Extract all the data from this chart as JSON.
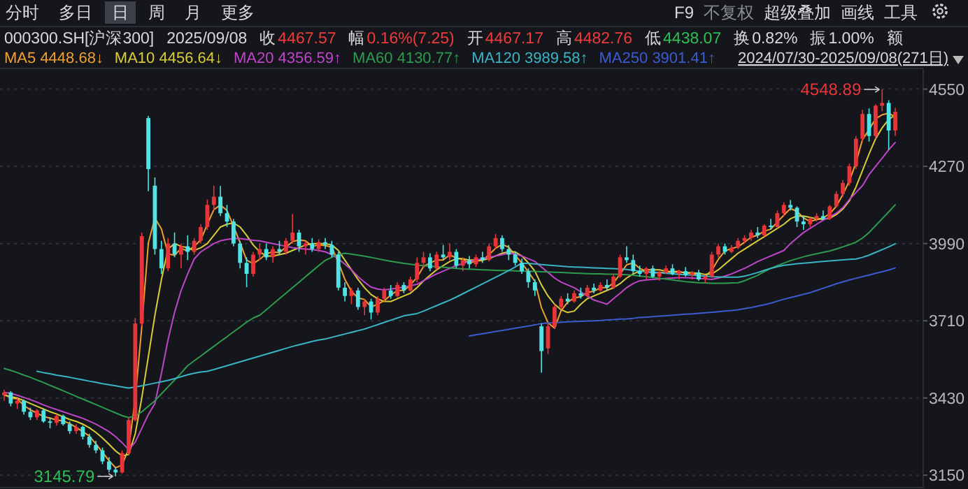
{
  "chart_data": {
    "type": "candlestick",
    "categories": [
      null,
      null,
      null,
      null,
      null,
      null,
      null,
      null,
      null,
      null,
      null,
      null,
      null,
      null,
      null,
      null,
      null,
      null,
      null,
      null,
      null,
      null,
      null,
      null,
      null,
      null,
      null,
      null,
      null,
      null,
      null,
      null,
      null,
      null,
      null,
      null,
      null,
      null,
      null,
      null,
      null,
      null,
      null,
      null,
      null,
      null,
      null,
      null,
      null,
      null,
      null,
      null,
      null,
      null,
      null,
      null,
      null,
      null,
      null,
      null,
      null,
      null,
      null,
      null,
      null,
      null,
      null,
      null,
      null,
      null,
      null,
      null,
      null,
      null,
      null,
      null,
      null,
      null,
      null,
      null,
      null,
      null,
      null,
      null,
      null,
      null,
      null,
      null,
      null,
      null,
      null,
      null,
      null,
      null,
      null,
      null,
      null,
      null,
      null,
      null,
      null,
      null,
      null,
      null,
      null,
      null,
      null,
      null,
      null,
      null,
      null,
      null,
      null,
      null,
      null,
      null,
      null,
      null,
      null,
      null,
      null,
      null,
      null,
      null,
      null,
      null,
      null,
      null,
      null,
      null,
      null,
      null,
      null,
      null,
      null,
      null,
      null
    ],
    "ohlc": [
      [
        3440,
        3460,
        3420,
        3450
      ],
      [
        3450,
        3455,
        3400,
        3410
      ],
      [
        3410,
        3430,
        3390,
        3420
      ],
      [
        3420,
        3425,
        3370,
        3380
      ],
      [
        3380,
        3395,
        3350,
        3360
      ],
      [
        3360,
        3390,
        3350,
        3385
      ],
      [
        3385,
        3390,
        3340,
        3345
      ],
      [
        3345,
        3360,
        3320,
        3340
      ],
      [
        3340,
        3370,
        3330,
        3365
      ],
      [
        3365,
        3370,
        3330,
        3335
      ],
      [
        3335,
        3345,
        3300,
        3310
      ],
      [
        3310,
        3335,
        3300,
        3325
      ],
      [
        3325,
        3330,
        3280,
        3290
      ],
      [
        3290,
        3300,
        3250,
        3260
      ],
      [
        3260,
        3275,
        3230,
        3240
      ],
      [
        3240,
        3250,
        3190,
        3200
      ],
      [
        3200,
        3215,
        3160,
        3170
      ],
      [
        3170,
        3180,
        3145.79,
        3160
      ],
      [
        3160,
        3240,
        3155,
        3230
      ],
      [
        3230,
        3360,
        3225,
        3350
      ],
      [
        3350,
        3720,
        3345,
        3700
      ],
      [
        3700,
        4030,
        3690,
        4017
      ],
      [
        4445,
        4453,
        4180,
        4260
      ],
      [
        4200,
        4230,
        3950,
        3970
      ],
      [
        3970,
        4000,
        3880,
        3900
      ],
      [
        3900,
        4010,
        3890,
        3990
      ],
      [
        3990,
        4030,
        3940,
        3950
      ],
      [
        3950,
        3990,
        3900,
        3980
      ],
      [
        3980,
        4020,
        3930,
        3960
      ],
      [
        3960,
        4010,
        3950,
        4000
      ],
      [
        4000,
        4060,
        3990,
        4050
      ],
      [
        4050,
        4150,
        4040,
        4130
      ],
      [
        4130,
        4200,
        4110,
        4160
      ],
      [
        4160,
        4199,
        4090,
        4100
      ],
      [
        4100,
        4130,
        4050,
        4070
      ],
      [
        4070,
        4080,
        3980,
        3990
      ],
      [
        3990,
        4000,
        3900,
        3920
      ],
      [
        3920,
        3940,
        3832,
        3880
      ],
      [
        3880,
        3960,
        3870,
        3950
      ],
      [
        3950,
        3990,
        3930,
        3970
      ],
      [
        3970,
        3990,
        3930,
        3940
      ],
      [
        3940,
        3980,
        3920,
        3970
      ],
      [
        3970,
        4000,
        3950,
        3960
      ],
      [
        3960,
        4010,
        3950,
        4000
      ],
      [
        4000,
        4097,
        3990,
        4030
      ],
      [
        4030,
        4040,
        3960,
        3980
      ],
      [
        3980,
        4000,
        3950,
        3990
      ],
      [
        3990,
        4010,
        3960,
        3970
      ],
      [
        3970,
        4005,
        3960,
        3995
      ],
      [
        3995,
        4010,
        3970,
        3985
      ],
      [
        3985,
        4000,
        3940,
        3950
      ],
      [
        3950,
        3960,
        3820,
        3830
      ],
      [
        3830,
        3850,
        3780,
        3800
      ],
      [
        3800,
        3830,
        3770,
        3820
      ],
      [
        3820,
        3830,
        3750,
        3760
      ],
      [
        3760,
        3790,
        3730,
        3780
      ],
      [
        3780,
        3790,
        3715,
        3740
      ],
      [
        3740,
        3800,
        3730,
        3790
      ],
      [
        3790,
        3830,
        3780,
        3820
      ],
      [
        3820,
        3840,
        3790,
        3800
      ],
      [
        3800,
        3850,
        3795,
        3840
      ],
      [
        3840,
        3850,
        3810,
        3820
      ],
      [
        3820,
        3870,
        3815,
        3860
      ],
      [
        3860,
        3940,
        3850,
        3920
      ],
      [
        3920,
        3960,
        3900,
        3940
      ],
      [
        3940,
        3955,
        3890,
        3900
      ],
      [
        3900,
        3960,
        3895,
        3950
      ],
      [
        3950,
        3985,
        3930,
        3940
      ],
      [
        3940,
        3990,
        3930,
        3960
      ],
      [
        3960,
        3970,
        3900,
        3910
      ],
      [
        3910,
        3940,
        3890,
        3930
      ],
      [
        3930,
        3945,
        3900,
        3915
      ],
      [
        3915,
        3950,
        3905,
        3940
      ],
      [
        3940,
        3960,
        3920,
        3930
      ],
      [
        3930,
        3990,
        3925,
        3980
      ],
      [
        3980,
        4025,
        3970,
        4010
      ],
      [
        4010,
        4020,
        3960,
        3970
      ],
      [
        3970,
        3985,
        3930,
        3950
      ],
      [
        3950,
        3960,
        3910,
        3920
      ],
      [
        3920,
        3935,
        3880,
        3890
      ],
      [
        3890,
        3900,
        3830,
        3850
      ],
      [
        3850,
        3860,
        3800,
        3820
      ],
      [
        3690,
        3700,
        3522,
        3600
      ],
      [
        3610,
        3700,
        3590,
        3690
      ],
      [
        3690,
        3770,
        3680,
        3760
      ],
      [
        3760,
        3800,
        3750,
        3790
      ],
      [
        3790,
        3810,
        3770,
        3780
      ],
      [
        3780,
        3820,
        3775,
        3810
      ],
      [
        3810,
        3830,
        3790,
        3800
      ],
      [
        3800,
        3840,
        3795,
        3830
      ],
      [
        3830,
        3845,
        3810,
        3820
      ],
      [
        3820,
        3850,
        3815,
        3840
      ],
      [
        3840,
        3860,
        3820,
        3830
      ],
      [
        3830,
        3880,
        3825,
        3870
      ],
      [
        3870,
        3950,
        3865,
        3940
      ],
      [
        3940,
        3980,
        3920,
        3930
      ],
      [
        3930,
        3950,
        3880,
        3890
      ],
      [
        3890,
        3910,
        3870,
        3880
      ],
      [
        3880,
        3905,
        3860,
        3900
      ],
      [
        3900,
        3910,
        3865,
        3870
      ],
      [
        3870,
        3890,
        3855,
        3885
      ],
      [
        3885,
        3910,
        3880,
        3900
      ],
      [
        3900,
        3915,
        3875,
        3880
      ],
      [
        3880,
        3895,
        3860,
        3890
      ],
      [
        3890,
        3905,
        3870,
        3875
      ],
      [
        3875,
        3890,
        3860,
        3885
      ],
      [
        3885,
        3895,
        3855,
        3860
      ],
      [
        3860,
        3875,
        3847,
        3870
      ],
      [
        3870,
        3960,
        3865,
        3950
      ],
      [
        3950,
        3990,
        3940,
        3980
      ],
      [
        3980,
        3990,
        3950,
        3960
      ],
      [
        3960,
        3985,
        3955,
        3975
      ],
      [
        3975,
        4010,
        3970,
        4000
      ],
      [
        4000,
        4020,
        3990,
        4010
      ],
      [
        4010,
        4040,
        4000,
        4030
      ],
      [
        4030,
        4050,
        4010,
        4020
      ],
      [
        4020,
        4060,
        4015,
        4055
      ],
      [
        4055,
        4080,
        4040,
        4050
      ],
      [
        4050,
        4110,
        4045,
        4100
      ],
      [
        4100,
        4140,
        4090,
        4130
      ],
      [
        4130,
        4148,
        4110,
        4120
      ],
      [
        4120,
        4125,
        4050,
        4070
      ],
      [
        4070,
        4090,
        4040,
        4060
      ],
      [
        4060,
        4085,
        4050,
        4080
      ],
      [
        4080,
        4100,
        4070,
        4090
      ],
      [
        4090,
        4110,
        4075,
        4080
      ],
      [
        4080,
        4130,
        4075,
        4125
      ],
      [
        4125,
        4180,
        4120,
        4170
      ],
      [
        4170,
        4220,
        4160,
        4210
      ],
      [
        4210,
        4280,
        4200,
        4270
      ],
      [
        4270,
        4380,
        4260,
        4370
      ],
      [
        4370,
        4475,
        4360,
        4460
      ],
      [
        4460,
        4480,
        4360,
        4380
      ],
      [
        4380,
        4495,
        4370,
        4490
      ],
      [
        4490,
        4548.89,
        4470,
        4500
      ],
      [
        4500,
        4510,
        4330,
        4400
      ],
      [
        4400,
        4482.76,
        4380,
        4467.57
      ]
    ],
    "series": [
      {
        "name": "MA5 4448.68↓",
        "color": "#f0a030",
        "type": "line",
        "values": [
          3445,
          3430,
          3427,
          3403,
          3387,
          3375,
          3363,
          3357,
          3350,
          3347,
          3337,
          3323,
          3308,
          3292,
          3263,
          3233,
          3203,
          3177,
          3187,
          3247,
          3427,
          3689,
          3992,
          4082,
          4043,
          3953,
          3947,
          3973,
          3963,
          3980,
          4003,
          4060,
          4113,
          4130,
          4110,
          4053,
          3993,
          3930,
          3917,
          3933,
          3953,
          3960,
          3957,
          3977,
          3997,
          4003,
          4000,
          3980,
          3985,
          3983,
          3977,
          3922,
          3860,
          3817,
          3793,
          3787,
          3760,
          3770,
          3783,
          3803,
          3820,
          3820,
          3840,
          3867,
          3907,
          3920,
          3930,
          3930,
          3950,
          3937,
          3933,
          3918,
          3928,
          3928,
          3950,
          3973,
          3987,
          3977,
          3947,
          3920,
          3887,
          3853,
          3757,
          3703,
          3683,
          3747,
          3777,
          3793,
          3797,
          3813,
          3817,
          3830,
          3830,
          3847,
          3880,
          3913,
          3920,
          3900,
          3890,
          3883,
          3885,
          3885,
          3888,
          3890,
          3882,
          3883,
          3873,
          3872,
          3893,
          3933,
          3963,
          3972,
          3978,
          3995,
          4013,
          4020,
          4035,
          4042,
          4068,
          4093,
          4117,
          4107,
          4083,
          4070,
          4077,
          4083,
          4098,
          4125,
          4168,
          4217,
          4283,
          4367,
          4403,
          4443,
          4457,
          4463,
          4448.68
        ]
      },
      {
        "name": "MA10 4456.64↓",
        "color": "#d8cc3a",
        "type": "line",
        "values": [
          3440,
          3435,
          3430,
          3420,
          3410,
          3400,
          3390,
          3380,
          3372,
          3362,
          3352,
          3345,
          3335,
          3322,
          3305,
          3285,
          3262,
          3238,
          3220,
          3225,
          3300,
          3430,
          3580,
          3730,
          3860,
          3970,
          3990,
          3980,
          3975,
          3965,
          3975,
          3990,
          4020,
          4050,
          4060,
          4065,
          4050,
          4020,
          3985,
          3960,
          3945,
          3945,
          3950,
          3955,
          3965,
          3975,
          3985,
          3990,
          3990,
          3990,
          3985,
          3965,
          3930,
          3895,
          3860,
          3830,
          3805,
          3790,
          3780,
          3780,
          3790,
          3800,
          3810,
          3830,
          3855,
          3875,
          3895,
          3910,
          3925,
          3935,
          3935,
          3930,
          3930,
          3930,
          3935,
          3945,
          3955,
          3960,
          3960,
          3945,
          3920,
          3890,
          3840,
          3800,
          3770,
          3750,
          3740,
          3745,
          3770,
          3790,
          3800,
          3810,
          3820,
          3830,
          3845,
          3865,
          3880,
          3890,
          3895,
          3895,
          3895,
          3890,
          3888,
          3886,
          3885,
          3884,
          3882,
          3878,
          3880,
          3895,
          3915,
          3935,
          3955,
          3970,
          3985,
          4000,
          4015,
          4030,
          4045,
          4060,
          4080,
          4090,
          4090,
          4085,
          4080,
          4078,
          4082,
          4095,
          4115,
          4145,
          4195,
          4255,
          4315,
          4370,
          4410,
          4440,
          4456.64
        ]
      },
      {
        "name": "MA20 4356.59↑",
        "color": "#c045c8",
        "type": "line",
        "values": [
          3450,
          3447,
          3440,
          3432,
          3424,
          3415,
          3405,
          3396,
          3388,
          3380,
          3372,
          3364,
          3356,
          3346,
          3335,
          3322,
          3308,
          3290,
          3268,
          3242,
          3270,
          3320,
          3370,
          3410,
          3520,
          3640,
          3740,
          3820,
          3880,
          3934,
          3960,
          3975,
          3990,
          4000,
          4005,
          4008,
          4008,
          4005,
          4002,
          4000,
          3995,
          3990,
          3985,
          3980,
          3975,
          3972,
          3970,
          3968,
          3965,
          3960,
          3950,
          3935,
          3915,
          3895,
          3870,
          3850,
          3832,
          3825,
          3822,
          3825,
          3828,
          3832,
          3837,
          3842,
          3855,
          3868,
          3880,
          3890,
          3900,
          3910,
          3918,
          3925,
          3930,
          3935,
          3940,
          3945,
          3950,
          3955,
          3952,
          3945,
          3935,
          3925,
          3905,
          3885,
          3865,
          3850,
          3840,
          3830,
          3815,
          3800,
          3785,
          3778,
          3770,
          3790,
          3810,
          3830,
          3845,
          3855,
          3858,
          3860,
          3862,
          3864,
          3865,
          3866,
          3866,
          3865,
          3864,
          3862,
          3860,
          3865,
          3872,
          3880,
          3890,
          3900,
          3912,
          3925,
          3935,
          3945,
          3955,
          3965,
          3990,
          4010,
          4030,
          4045,
          4060,
          4075,
          4087,
          4100,
          4120,
          4150,
          4175,
          4200,
          4240,
          4270,
          4300,
          4330,
          4356.59
        ]
      },
      {
        "name": "MA60 4130.77↑",
        "color": "#2e9a4e",
        "type": "line",
        "values": [
          3537,
          3530,
          3522,
          3513,
          3505,
          3495,
          3486,
          3476,
          3466,
          3456,
          3446,
          3436,
          3426,
          3416,
          3406,
          3396,
          3386,
          3376,
          3366,
          3359,
          3365,
          3380,
          3400,
          3420,
          3445,
          3470,
          3495,
          3520,
          3547,
          3565,
          3582,
          3600,
          3617,
          3635,
          3652,
          3670,
          3687,
          3705,
          3720,
          3730,
          3750,
          3770,
          3790,
          3810,
          3830,
          3850,
          3870,
          3890,
          3910,
          3929,
          3940,
          3950,
          3955,
          3952,
          3948,
          3944,
          3940,
          3935,
          3930,
          3926,
          3922,
          3918,
          3915,
          3912,
          3910,
          3908,
          3906,
          3904,
          3902,
          3900,
          3898,
          3897,
          3896,
          3895,
          3894,
          3893,
          3892,
          3892,
          3891,
          3890,
          3890,
          3889,
          3888,
          3887,
          3886,
          3885,
          3884,
          3883,
          3882,
          3881,
          3880,
          3880,
          3879,
          3879,
          3878,
          3877,
          3875,
          3872,
          3870,
          3867,
          3864,
          3861,
          3858,
          3855,
          3852,
          3850,
          3848,
          3847,
          3846,
          3846,
          3846,
          3847,
          3848,
          3855,
          3865,
          3875,
          3888,
          3900,
          3910,
          3919,
          3928,
          3935,
          3942,
          3948,
          3953,
          3958,
          3963,
          3970,
          3978,
          3986,
          3995,
          4010,
          4030,
          4055,
          4080,
          4105,
          4130.77
        ]
      },
      {
        "name": "MA120 3989.58↑",
        "color": "#3ab4c4",
        "type": "line",
        "values": [
          null,
          null,
          null,
          null,
          null,
          3527,
          3522,
          3518,
          3513,
          3509,
          3505,
          3500,
          3496,
          3491,
          3487,
          3482,
          3478,
          3474,
          3470,
          3466,
          3470,
          3474,
          3479,
          3484,
          3489,
          3494,
          3500,
          3507,
          3514,
          3520,
          3524,
          3527,
          3533,
          3540,
          3547,
          3554,
          3561,
          3568,
          3575,
          3582,
          3589,
          3596,
          3603,
          3610,
          3617,
          3623,
          3629,
          3635,
          3640,
          3644,
          3650,
          3656,
          3662,
          3668,
          3674,
          3680,
          3688,
          3696,
          3704,
          3712,
          3720,
          3728,
          3732,
          3736,
          3745,
          3755,
          3765,
          3775,
          3785,
          3796,
          3808,
          3820,
          3832,
          3844,
          3856,
          3868,
          3880,
          3892,
          3905,
          3919,
          3918,
          3916,
          3914,
          3912,
          3910,
          3908,
          3906,
          3905,
          3904,
          3903,
          3902,
          3901,
          3900,
          3899,
          3898,
          3896,
          3893,
          3890,
          3888,
          3886,
          3884,
          3882,
          3880,
          3878,
          3877,
          3876,
          3874,
          3872,
          3870,
          3869,
          3868,
          3868,
          3868,
          3872,
          3878,
          3885,
          3893,
          3900,
          3906,
          3911,
          3914,
          3917,
          3919,
          3921,
          3923,
          3925,
          3927,
          3929,
          3931,
          3933,
          3934,
          3940,
          3948,
          3958,
          3968,
          3978,
          3989.58
        ]
      },
      {
        "name": "MA250 3901.41↑",
        "color": "#3d5bd0",
        "type": "line",
        "values": [
          null,
          null,
          null,
          null,
          null,
          null,
          null,
          null,
          null,
          null,
          null,
          null,
          null,
          null,
          null,
          null,
          null,
          null,
          null,
          null,
          null,
          null,
          null,
          null,
          null,
          null,
          null,
          null,
          null,
          null,
          null,
          null,
          null,
          null,
          null,
          null,
          null,
          null,
          null,
          null,
          null,
          null,
          null,
          null,
          null,
          null,
          null,
          null,
          null,
          null,
          null,
          null,
          null,
          null,
          null,
          null,
          null,
          null,
          null,
          null,
          null,
          null,
          null,
          null,
          null,
          null,
          null,
          null,
          null,
          null,
          null,
          3655,
          3659,
          3663,
          3667,
          3671,
          3675,
          3679,
          3683,
          3687,
          3691,
          3695,
          3700,
          3702,
          3703,
          3705,
          3706,
          3707,
          3708,
          3709,
          3710,
          3711,
          3713,
          3714,
          3716,
          3717,
          3719,
          3722,
          3723,
          3725,
          3727,
          3728,
          3730,
          3732,
          3734,
          3735,
          3737,
          3739,
          3741,
          3743,
          3745,
          3747,
          3750,
          3754,
          3758,
          3763,
          3768,
          3774,
          3781,
          3788,
          3794,
          3800,
          3806,
          3812,
          3820,
          3828,
          3836,
          3844,
          3851,
          3858,
          3864,
          3870,
          3876,
          3882,
          3888,
          3894,
          3901.41
        ]
      }
    ],
    "ylim": [
      3105,
      4625
    ],
    "yticks": [
      3150,
      3430,
      3710,
      3990,
      4270,
      4550
    ],
    "grid": "y",
    "legend": "top left",
    "annotations": [
      "分时",
      "多日",
      "日",
      "周",
      "月",
      "更多",
      "F9",
      "不复权",
      "超级叠加",
      "画线",
      "工具",
      "000300.SH[沪深300]",
      "2025/09/08",
      "收",
      "4467.57",
      "幅",
      "0.16%(7.25)",
      "开",
      "4467.17",
      "高",
      "4482.76",
      "低",
      "4438.07",
      "换",
      "0.82%",
      "振",
      "1.00%",
      "额",
      "2024/07/30-2025/09/08(271日)",
      "4548.89",
      "3145.79"
    ]
  }
}
